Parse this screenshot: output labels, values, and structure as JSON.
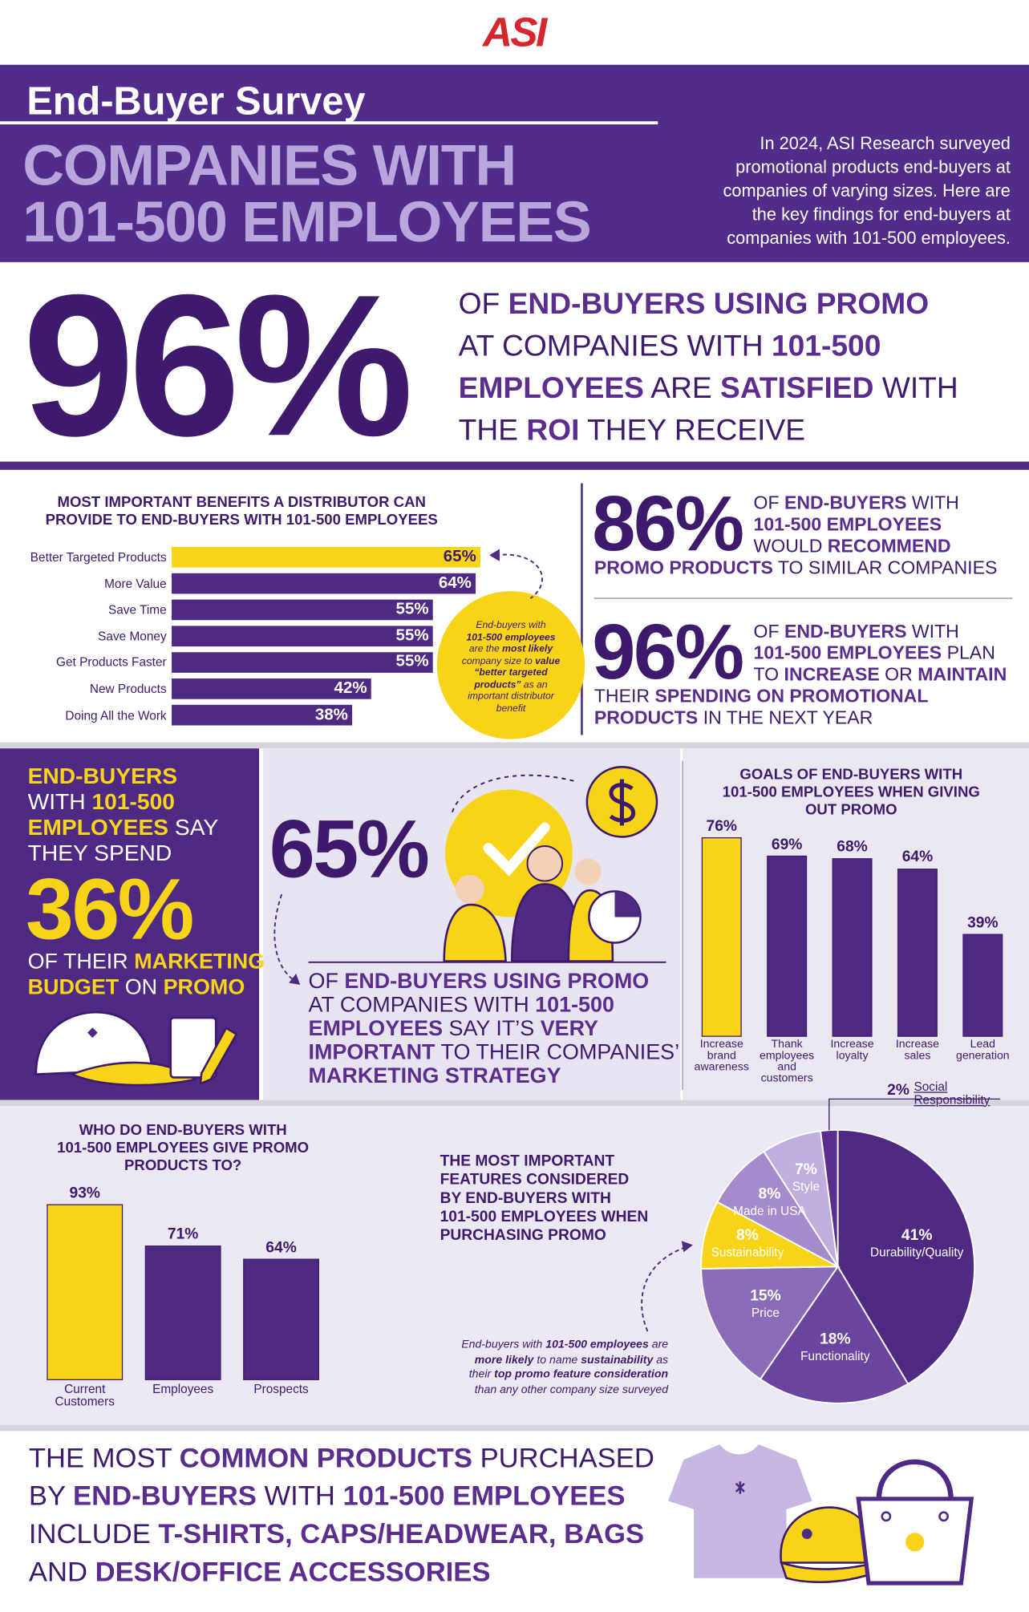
{
  "header": {
    "logo": "ASI",
    "kicker": "End-Buyer Survey",
    "title": [
      "COMPANIES WITH",
      "101-500 EMPLOYEES"
    ],
    "intro": [
      "In 2024, ASI Research surveyed",
      "promotional products end-buyers at",
      "companies of varying sizes. Here are",
      "the key findings for end-buyers at",
      "companies with 101-500 employees."
    ]
  },
  "satisfaction": {
    "stat": "96%",
    "text": [
      [
        "OF ",
        {
          "text": "END-BUYERS USING PROMO",
          "strong": true
        }
      ],
      [
        "AT COMPANIES WITH ",
        {
          "text": "101-500",
          "strong": true
        }
      ],
      [
        {
          "text": "EMPLOYEES",
          "strong": true
        },
        " ARE ",
        {
          "text": "SATISFIED",
          "strong": true
        },
        " WITH"
      ],
      [
        "THE ",
        {
          "text": "ROI",
          "strong": true
        },
        " THEY RECEIVE"
      ]
    ]
  },
  "benefits_note": [
    [
      "End-buyers with"
    ],
    [
      {
        "text": "101-500 employees",
        "strong": true
      }
    ],
    [
      "are the ",
      {
        "text": "most likely",
        "strong": true
      }
    ],
    [
      "company size to ",
      {
        "text": "value",
        "strong": true
      }
    ],
    [
      {
        "text": "“better targeted",
        "strong": true
      }
    ],
    [
      {
        "text": "products”",
        "strong": true
      },
      " as an"
    ],
    [
      "important distributor"
    ],
    [
      "benefit"
    ]
  ],
  "recommend": {
    "stat": "86%",
    "text": [
      [
        "OF ",
        {
          "text": "END-BUYERS",
          "strong": true
        },
        " WITH"
      ],
      [
        {
          "text": "101-500 EMPLOYEES",
          "strong": true
        }
      ],
      [
        "WOULD ",
        {
          "text": "RECOMMEND",
          "strong": true
        }
      ]
    ],
    "text_below": [
      [
        {
          "text": "PROMO PRODUCTS",
          "strong": true
        },
        " TO SIMILAR COMPANIES"
      ]
    ]
  },
  "spending": {
    "stat": "96%",
    "text": [
      [
        "OF ",
        {
          "text": "END-BUYERS",
          "strong": true
        },
        " WITH"
      ],
      [
        {
          "text": "101-500 EMPLOYEES",
          "strong": true
        },
        " PLAN"
      ],
      [
        "TO ",
        {
          "text": "INCREASE",
          "strong": true
        },
        " OR ",
        {
          "text": "MAINTAIN",
          "strong": true
        }
      ]
    ],
    "text_below": [
      [
        "THEIR ",
        {
          "text": "SPENDING ON PROMOTIONAL",
          "strong": true
        }
      ],
      [
        {
          "text": "PRODUCTS",
          "strong": true
        },
        " IN THE NEXT YEAR"
      ]
    ]
  },
  "budget": {
    "text": [
      [
        {
          "text": "END-BUYERS",
          "strong": true
        }
      ],
      [
        "WITH ",
        {
          "text": "101-500",
          "strong": true
        }
      ],
      [
        {
          "text": "EMPLOYEES",
          "strong": true
        },
        " SAY"
      ],
      [
        "THEY SPEND"
      ]
    ],
    "stat": "36%",
    "text_below": [
      [
        "OF THEIR ",
        {
          "text": "MARKETING",
          "strong": true
        }
      ],
      [
        {
          "text": "BUDGET",
          "strong": true
        },
        " ON ",
        {
          "text": "PROMO",
          "strong": true
        }
      ]
    ]
  },
  "importance": {
    "stat": "65%",
    "text": [
      [
        "OF ",
        {
          "text": "END-BUYERS USING PROMO",
          "strong": true
        }
      ],
      [
        "AT COMPANIES WITH ",
        {
          "text": "101-500",
          "strong": true
        }
      ],
      [
        {
          "text": "EMPLOYEES",
          "strong": true
        },
        " SAY IT’S ",
        {
          "text": "VERY",
          "strong": true
        }
      ],
      [
        {
          "text": "IMPORTANT",
          "strong": true
        },
        " TO THEIR COMPANIES’"
      ],
      [
        {
          "text": "MARKETING STRATEGY",
          "strong": true
        }
      ]
    ]
  },
  "features_note": [
    [
      "End-buyers with ",
      {
        "text": "101-500 employees",
        "strong": true
      },
      " are"
    ],
    [
      {
        "text": "more likely",
        "strong": true
      },
      " to name ",
      {
        "text": "sustainability",
        "strong": true
      },
      " as"
    ],
    [
      "their ",
      {
        "text": "top promo feature consideration",
        "strong": true
      }
    ],
    [
      "than any other company size surveyed"
    ]
  ],
  "products": {
    "text": [
      [
        "THE MOST ",
        {
          "text": "COMMON PRODUCTS",
          "strong": true
        },
        " PURCHASED"
      ],
      [
        "BY ",
        {
          "text": "END-BUYERS",
          "strong": true
        },
        " WITH ",
        {
          "text": "101-500 EMPLOYEES",
          "strong": true
        }
      ],
      [
        "INCLUDE ",
        {
          "text": "T-SHIRTS, CAPS/HEADWEAR, BAGS",
          "strong": true
        }
      ],
      [
        "AND ",
        {
          "text": "DESK/OFFICE ACCESSORIES",
          "strong": true
        }
      ]
    ]
  },
  "chart_data": [
    {
      "type": "bar",
      "orientation": "horizontal",
      "title": [
        "MOST IMPORTANT BENEFITS A DISTRIBUTOR CAN",
        "PROVIDE TO END-BUYERS WITH 101-500 EMPLOYEES"
      ],
      "categories": [
        "Better Targeted Products",
        "More Value",
        "Save Time",
        "Save Money",
        "Get Products Faster",
        "New Products",
        "Doing All the Work"
      ],
      "values": [
        65,
        64,
        55,
        55,
        55,
        42,
        38
      ],
      "value_labels": [
        "65%",
        "64%",
        "55%",
        "55%",
        "55%",
        "42%",
        "38%"
      ],
      "colors": [
        "#f7d417",
        "#4e2a84",
        "#4e2a84",
        "#4e2a84",
        "#4e2a84",
        "#4e2a84",
        "#4e2a84"
      ]
    },
    {
      "type": "bar",
      "orientation": "vertical",
      "title": [
        "GOALS OF END-BUYERS WITH",
        "101-500 EMPLOYEES WHEN GIVING",
        "OUT PROMO"
      ],
      "categories": [
        "Increase brand awareness",
        "Thank employees and customers",
        "Increase loyalty",
        "Increase sales",
        "Lead generation"
      ],
      "values": [
        76,
        69,
        68,
        64,
        39
      ],
      "value_labels": [
        "76%",
        "69%",
        "68%",
        "64%",
        "39%"
      ],
      "colors": [
        "#f7d417",
        "#4e2a84",
        "#4e2a84",
        "#4e2a84",
        "#4e2a84"
      ]
    },
    {
      "type": "bar",
      "orientation": "vertical",
      "title": [
        "WHO DO END-BUYERS WITH",
        "101-500 EMPLOYEES GIVE PROMO",
        "PRODUCTS TO?"
      ],
      "categories": [
        "Current Customers",
        "Employees",
        "Prospects"
      ],
      "values": [
        93,
        71,
        64
      ],
      "value_labels": [
        "93%",
        "71%",
        "64%"
      ],
      "colors": [
        "#f7d417",
        "#4e2a84",
        "#4e2a84"
      ]
    },
    {
      "type": "pie",
      "title": [
        "THE MOST IMPORTANT",
        "FEATURES CONSIDERED",
        "BY END-BUYERS WITH",
        "101-500 EMPLOYEES WHEN",
        "PURCHASING PROMO"
      ],
      "categories": [
        "Durability/Quality",
        "Functionality",
        "Price",
        "Sustainability",
        "Made in USA",
        "Style",
        "Social Responsibility"
      ],
      "values": [
        41,
        18,
        15,
        8,
        8,
        7,
        2
      ],
      "value_labels": [
        "41%",
        "18%",
        "15%",
        "8%",
        "8%",
        "7%",
        "2%"
      ],
      "colors": [
        "#4e2a84",
        "#6a45a0",
        "#8a6bb8",
        "#f7d417",
        "#a58bcb",
        "#bfaede",
        "#5b2d8e"
      ]
    }
  ]
}
